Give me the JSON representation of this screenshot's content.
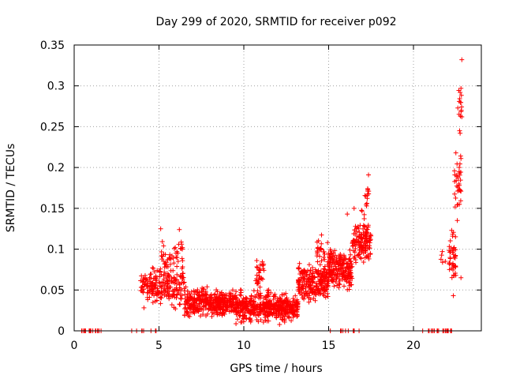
{
  "chart_data": {
    "type": "scatter",
    "title": "Day 299 of 2020, SRMTID for receiver p092",
    "xlabel": "GPS time / hours",
    "ylabel": "SRMTID / TECUs",
    "xlim": [
      0,
      24
    ],
    "ylim": [
      0,
      0.35
    ],
    "xticks": [
      0,
      5,
      10,
      15,
      20
    ],
    "xtick_labels": [
      "0",
      "5",
      "10",
      "15",
      "20"
    ],
    "yticks": [
      0,
      0.05,
      0.1,
      0.15,
      0.2,
      0.25,
      0.3,
      0.35
    ],
    "ytick_labels": [
      "0",
      "0.05",
      "0.1",
      "0.15",
      "0.2",
      "0.25",
      "0.3",
      "0.35"
    ],
    "grid": true,
    "marker": "+",
    "marker_color": "#ff0000",
    "series": [
      {
        "name": "SRMTID",
        "clusters": [
          {
            "x_start": 0.4,
            "x_end": 1.6,
            "y_base": 0.0,
            "y_spread": 0.0,
            "count": 22
          },
          {
            "x_start": 3.1,
            "x_end": 4.9,
            "y_base": 0.0,
            "y_spread": 0.0,
            "count": 8
          },
          {
            "x_start": 3.9,
            "x_end": 6.5,
            "y_base": 0.055,
            "y_spread": 0.035,
            "count": 220
          },
          {
            "x_start": 5.0,
            "x_end": 6.4,
            "y_base": 0.095,
            "y_spread": 0.025,
            "count": 40
          },
          {
            "x_start": 6.5,
            "x_end": 9.5,
            "y_base": 0.035,
            "y_spread": 0.022,
            "count": 380
          },
          {
            "x_start": 9.5,
            "x_end": 11.5,
            "y_base": 0.03,
            "y_spread": 0.025,
            "count": 260
          },
          {
            "x_start": 10.7,
            "x_end": 11.2,
            "y_base": 0.07,
            "y_spread": 0.025,
            "count": 30
          },
          {
            "x_start": 11.5,
            "x_end": 13.2,
            "y_base": 0.028,
            "y_spread": 0.022,
            "count": 240
          },
          {
            "x_start": 13.2,
            "x_end": 15.0,
            "y_base": 0.06,
            "y_spread": 0.03,
            "count": 240
          },
          {
            "x_start": 14.3,
            "x_end": 15.2,
            "y_base": 0.095,
            "y_spread": 0.025,
            "count": 40
          },
          {
            "x_start": 15.0,
            "x_end": 16.4,
            "y_base": 0.075,
            "y_spread": 0.03,
            "count": 200
          },
          {
            "x_start": 16.4,
            "x_end": 17.5,
            "y_base": 0.11,
            "y_spread": 0.035,
            "count": 140
          },
          {
            "x_start": 16.9,
            "x_end": 17.4,
            "y_base": 0.16,
            "y_spread": 0.03,
            "count": 14
          },
          {
            "x_start": 15.1,
            "x_end": 17.4,
            "y_base": 0.0,
            "y_spread": 0.0,
            "count": 10
          },
          {
            "x_start": 20.5,
            "x_end": 22.3,
            "y_base": 0.0,
            "y_spread": 0.0,
            "count": 22
          },
          {
            "x_start": 21.6,
            "x_end": 21.9,
            "y_base": 0.085,
            "y_spread": 0.015,
            "count": 4
          },
          {
            "x_start": 22.1,
            "x_end": 22.5,
            "y_base": 0.09,
            "y_spread": 0.04,
            "count": 45
          },
          {
            "x_start": 22.4,
            "x_end": 22.8,
            "y_base": 0.18,
            "y_spread": 0.06,
            "count": 30
          },
          {
            "x_start": 22.6,
            "x_end": 22.9,
            "y_base": 0.28,
            "y_spread": 0.03,
            "count": 10
          }
        ],
        "points": [
          {
            "x": 22.85,
            "y": 0.332
          },
          {
            "x": 22.8,
            "y": 0.297
          },
          {
            "x": 22.75,
            "y": 0.292
          },
          {
            "x": 22.7,
            "y": 0.281
          },
          {
            "x": 22.82,
            "y": 0.27
          },
          {
            "x": 22.85,
            "y": 0.262
          },
          {
            "x": 22.72,
            "y": 0.245
          },
          {
            "x": 22.75,
            "y": 0.242
          },
          {
            "x": 22.78,
            "y": 0.214
          },
          {
            "x": 22.8,
            "y": 0.211
          },
          {
            "x": 22.7,
            "y": 0.2
          },
          {
            "x": 17.35,
            "y": 0.191
          },
          {
            "x": 22.68,
            "y": 0.18
          },
          {
            "x": 22.72,
            "y": 0.173
          },
          {
            "x": 22.8,
            "y": 0.171
          },
          {
            "x": 17.3,
            "y": 0.174
          },
          {
            "x": 17.2,
            "y": 0.165
          },
          {
            "x": 16.5,
            "y": 0.15
          },
          {
            "x": 16.1,
            "y": 0.143
          },
          {
            "x": 5.1,
            "y": 0.125
          },
          {
            "x": 6.2,
            "y": 0.124
          },
          {
            "x": 21.7,
            "y": 0.097
          },
          {
            "x": 22.8,
            "y": 0.065
          },
          {
            "x": 22.35,
            "y": 0.043
          }
        ]
      }
    ]
  }
}
